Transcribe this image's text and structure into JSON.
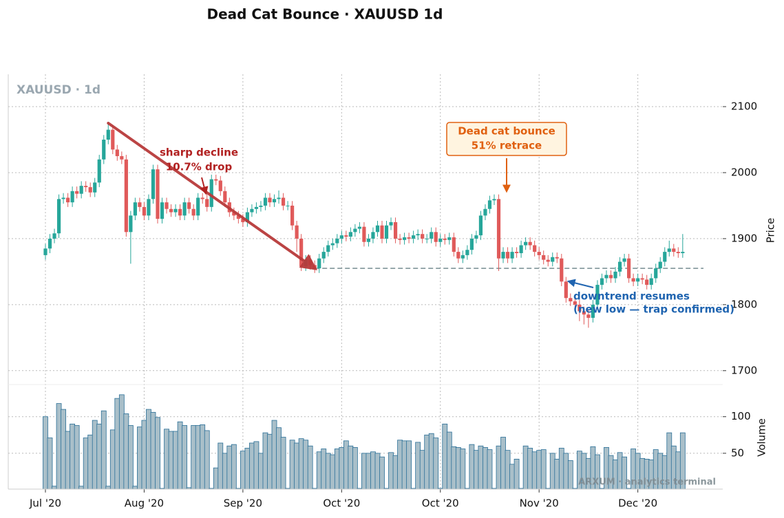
{
  "chart_data": {
    "type": "candlestick",
    "title": "Dead Cat Bounce · XAUUSD 1d",
    "label": "XAUUSD · 1d",
    "watermark": "ARXUM · analytics terminal",
    "categories": [
      "Jul '20",
      null,
      null,
      null,
      null,
      null,
      null,
      null,
      null,
      null,
      null,
      null,
      null,
      null,
      null,
      null,
      null,
      null,
      null,
      null,
      null,
      null,
      "Aug '20",
      null,
      null,
      null,
      null,
      null,
      null,
      null,
      null,
      null,
      null,
      null,
      null,
      null,
      null,
      null,
      null,
      null,
      null,
      null,
      null,
      null,
      "Sep '20",
      null,
      null,
      null,
      null,
      null,
      null,
      null,
      null,
      null,
      null,
      null,
      null,
      null,
      null,
      null,
      null,
      null,
      null,
      null,
      null,
      null,
      "Oct '20",
      null,
      null,
      null,
      null,
      null,
      null,
      null,
      null,
      null,
      null,
      null,
      null,
      null,
      null,
      null,
      null,
      null,
      null,
      null,
      null,
      null,
      "Oct '20",
      null,
      null,
      null,
      null,
      null,
      null,
      null,
      null,
      null,
      null,
      null,
      null,
      null,
      null,
      null,
      null,
      null,
      null,
      null,
      null,
      null,
      "Nov '20",
      null,
      null,
      null,
      null,
      null,
      null,
      null,
      null,
      null,
      null,
      null,
      null,
      null,
      null,
      null,
      null,
      null,
      null,
      null,
      null,
      null,
      "Dec '20",
      null,
      null,
      null,
      null,
      null,
      null,
      null,
      null,
      null,
      null
    ],
    "open": [
      1875,
      1885,
      1900,
      1908,
      1960,
      1962,
      1955,
      1972,
      1968,
      1980,
      1978,
      1970,
      1985,
      2020,
      2050,
      2065,
      2035,
      2025,
      2020,
      1910,
      1935,
      1955,
      1948,
      1935,
      1960,
      2005,
      1930,
      1955,
      1945,
      1940,
      1945,
      1935,
      1955,
      1945,
      1935,
      1962,
      1960,
      1948,
      1990,
      1988,
      1972,
      1955,
      1940,
      1935,
      1930,
      1925,
      1940,
      1945,
      1948,
      1950,
      1962,
      1955,
      1960,
      1962,
      1950,
      1950,
      1920,
      1900,
      1858,
      1868,
      1860,
      1855,
      1870,
      1880,
      1890,
      1893,
      1900,
      1905,
      1903,
      1910,
      1915,
      1918,
      1895,
      1900,
      1910,
      1920,
      1900,
      1920,
      1925,
      1900,
      1898,
      1902,
      1900,
      1905,
      1907,
      1900,
      1900,
      1910,
      1895,
      1900,
      1898,
      1902,
      1880,
      1870,
      1875,
      1883,
      1900,
      1905,
      1935,
      1945,
      1958,
      1960,
      1870,
      1880,
      1870,
      1880,
      1878,
      1890,
      1895,
      1890,
      1880,
      1875,
      1868,
      1865,
      1872,
      1870,
      1835,
      1810,
      1805,
      1800,
      1790,
      1785,
      1780,
      1800,
      1830,
      1840,
      1845,
      1840,
      1850,
      1865,
      1870,
      1840,
      1835,
      1840,
      1838,
      1830,
      1840,
      1855,
      1865,
      1880,
      1885,
      1880,
      1878
    ],
    "high": [
      1892,
      1907,
      1915,
      1967,
      1969,
      1969,
      1979,
      1979,
      1987,
      1987,
      1985,
      1992,
      2027,
      2057,
      2075,
      2072,
      2042,
      2032,
      2027,
      1942,
      1962,
      1962,
      1955,
      1967,
      2012,
      2012,
      1962,
      1962,
      1952,
      1952,
      1952,
      1962,
      1962,
      1952,
      1969,
      1969,
      1967,
      1997,
      1997,
      1995,
      1979,
      1962,
      1947,
      1942,
      1937,
      1947,
      1952,
      1955,
      1957,
      1969,
      1969,
      1967,
      1973,
      1969,
      1957,
      1957,
      1927,
      1907,
      1875,
      1875,
      1867,
      1877,
      1887,
      1897,
      1900,
      1907,
      1912,
      1912,
      1917,
      1922,
      1925,
      1925,
      1907,
      1917,
      1927,
      1927,
      1927,
      1932,
      1932,
      1907,
      1909,
      1909,
      1912,
      1914,
      1914,
      1907,
      1917,
      1917,
      1907,
      1907,
      1909,
      1909,
      1887,
      1882,
      1890,
      1907,
      1912,
      1942,
      1952,
      1965,
      1967,
      1967,
      1887,
      1887,
      1887,
      1887,
      1897,
      1902,
      1902,
      1897,
      1887,
      1882,
      1875,
      1879,
      1879,
      1877,
      1842,
      1817,
      1812,
      1807,
      1797,
      1792,
      1807,
      1837,
      1847,
      1852,
      1852,
      1857,
      1872,
      1877,
      1877,
      1847,
      1847,
      1847,
      1845,
      1847,
      1862,
      1872,
      1887,
      1897,
      1892,
      1887,
      1907
    ],
    "low": [
      1868,
      1878,
      1893,
      1901,
      1953,
      1948,
      1948,
      1961,
      1961,
      1971,
      1963,
      1963,
      1978,
      2013,
      2043,
      2028,
      2018,
      2013,
      1903,
      1862,
      1928,
      1941,
      1928,
      1928,
      1953,
      1923,
      1923,
      1938,
      1933,
      1933,
      1928,
      1928,
      1938,
      1928,
      1928,
      1953,
      1941,
      1941,
      1981,
      1965,
      1948,
      1933,
      1928,
      1923,
      1918,
      1918,
      1933,
      1938,
      1941,
      1943,
      1948,
      1948,
      1953,
      1943,
      1943,
      1913,
      1880,
      1851,
      1851,
      1853,
      1848,
      1848,
      1863,
      1873,
      1883,
      1886,
      1893,
      1896,
      1896,
      1903,
      1908,
      1888,
      1888,
      1893,
      1903,
      1893,
      1893,
      1913,
      1893,
      1891,
      1891,
      1893,
      1893,
      1898,
      1893,
      1893,
      1893,
      1888,
      1888,
      1891,
      1891,
      1873,
      1863,
      1863,
      1868,
      1876,
      1893,
      1898,
      1928,
      1938,
      1951,
      1851,
      1863,
      1863,
      1863,
      1871,
      1871,
      1883,
      1883,
      1873,
      1868,
      1861,
      1858,
      1858,
      1863,
      1828,
      1803,
      1798,
      1793,
      1775,
      1770,
      1765,
      1773,
      1793,
      1823,
      1833,
      1833,
      1833,
      1843,
      1858,
      1833,
      1828,
      1828,
      1831,
      1823,
      1823,
      1833,
      1848,
      1858,
      1873,
      1873,
      1871,
      1871
    ],
    "close": [
      1885,
      1900,
      1908,
      1960,
      1962,
      1955,
      1972,
      1968,
      1980,
      1978,
      1970,
      1985,
      2020,
      2050,
      2065,
      2035,
      2025,
      2020,
      1910,
      1935,
      1955,
      1948,
      1935,
      1960,
      2005,
      1930,
      1955,
      1945,
      1940,
      1945,
      1935,
      1955,
      1945,
      1935,
      1962,
      1960,
      1948,
      1990,
      1988,
      1972,
      1955,
      1940,
      1935,
      1930,
      1925,
      1940,
      1945,
      1948,
      1950,
      1962,
      1955,
      1960,
      1962,
      1950,
      1950,
      1920,
      1900,
      1858,
      1868,
      1860,
      1855,
      1870,
      1880,
      1890,
      1893,
      1900,
      1905,
      1903,
      1910,
      1915,
      1918,
      1895,
      1900,
      1910,
      1920,
      1900,
      1920,
      1925,
      1900,
      1898,
      1902,
      1900,
      1905,
      1907,
      1900,
      1900,
      1910,
      1895,
      1900,
      1898,
      1902,
      1880,
      1870,
      1875,
      1883,
      1900,
      1905,
      1935,
      1945,
      1958,
      1960,
      1870,
      1880,
      1870,
      1880,
      1878,
      1890,
      1895,
      1890,
      1880,
      1875,
      1868,
      1865,
      1872,
      1870,
      1835,
      1810,
      1805,
      1800,
      1790,
      1785,
      1780,
      1800,
      1830,
      1840,
      1845,
      1840,
      1850,
      1865,
      1870,
      1840,
      1835,
      1840,
      1838,
      1830,
      1840,
      1855,
      1865,
      1880,
      1885,
      1880,
      1878,
      1880
    ],
    "up_color": "#26a69a",
    "down_color": "#e05a5a",
    "ylim": [
      1680,
      2149
    ],
    "yticks": [
      1700,
      1800,
      1900,
      2000,
      2100
    ],
    "ylabel": "Price",
    "grid": true,
    "reference_line": 1855,
    "reference_color": "#7f9497",
    "trend_color": "#b83a3a",
    "volume": {
      "values": [
        100,
        71,
        5,
        118,
        110,
        80,
        90,
        88,
        5,
        71,
        75,
        95,
        90,
        108,
        5,
        82,
        125,
        130,
        104,
        88,
        5,
        86,
        95,
        110,
        106,
        99,
        2,
        83,
        80,
        80,
        93,
        88,
        3,
        88,
        88,
        89,
        81,
        2,
        30,
        64,
        50,
        60,
        62,
        2,
        53,
        57,
        64,
        66,
        50,
        78,
        76,
        95,
        85,
        72,
        2,
        68,
        64,
        70,
        68,
        60,
        2,
        52,
        56,
        50,
        48,
        56,
        58,
        67,
        60,
        58,
        2,
        50,
        50,
        52,
        50,
        45,
        2,
        51,
        47,
        68,
        67,
        67,
        2,
        65,
        54,
        75,
        77,
        71,
        2,
        90,
        79,
        59,
        58,
        56,
        2,
        62,
        54,
        60,
        58,
        55,
        2,
        60,
        72,
        54,
        35,
        42,
        2,
        60,
        57,
        52,
        54,
        55,
        2,
        50,
        42,
        57,
        50,
        40,
        2,
        53,
        50,
        43,
        59,
        48,
        2,
        58,
        47,
        41,
        51,
        45,
        2,
        56,
        50,
        43,
        42,
        41,
        55,
        50,
        47,
        78,
        60,
        52,
        78
      ],
      "color": "#a9bfc9",
      "edge_color": "#2a6f97",
      "ylim": [
        1,
        143
      ],
      "yticks": [
        50,
        100
      ],
      "ylabel": "Volume"
    },
    "annotations": [
      {
        "lines": [
          "sharp decline",
          "10.7% drop"
        ],
        "color": "#b22222"
      },
      {
        "lines": [
          "Dead cat bounce",
          "51% retrace"
        ],
        "color": "#e06010"
      },
      {
        "lines": [
          "downtrend resumes",
          "(new low — trap confirmed)"
        ],
        "color": "#1f64b0"
      }
    ]
  }
}
